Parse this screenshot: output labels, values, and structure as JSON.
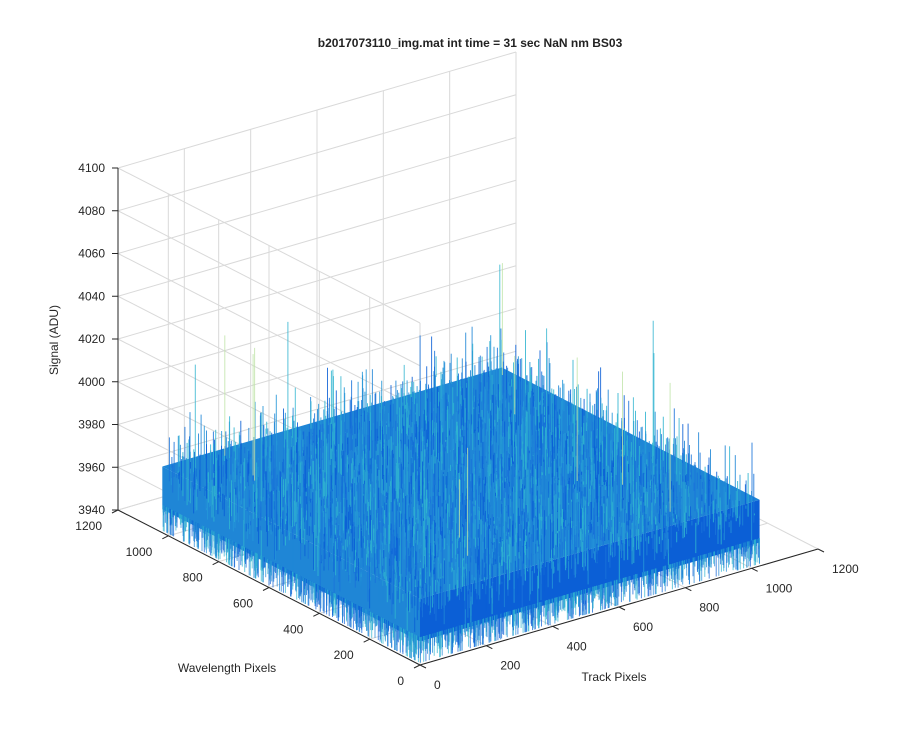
{
  "chart_data": {
    "type": "surface",
    "title": "b2017073110_img.mat int time = 31 sec  NaN nm BS03",
    "xlabel": "Track Pixels",
    "ylabel": "Wavelength Pixels",
    "zlabel": "Signal (ADU)",
    "x_ticks": [
      "0",
      "200",
      "400",
      "600",
      "800",
      "1000",
      "1200"
    ],
    "y_ticks": [
      "0",
      "200",
      "400",
      "600",
      "800",
      "1000",
      "1200"
    ],
    "z_ticks": [
      "3940",
      "3960",
      "3980",
      "4000",
      "4020",
      "4040",
      "4060",
      "4080",
      "4100"
    ],
    "xlim": [
      0,
      1200
    ],
    "ylim": [
      0,
      1200
    ],
    "zlim": [
      3940,
      4100
    ],
    "x_extent": [
      0,
      1024
    ],
    "y_extent": [
      0,
      1024
    ],
    "z_mean": 3963,
    "z_noise_range": [
      3945,
      4040
    ],
    "colormap": "parula",
    "grid": true,
    "colors": {
      "surface_low": "#0b5fd6",
      "surface_mid": "#1f86d6",
      "surface_high": "#2fb4d0",
      "spike": "#bfe3a8"
    }
  }
}
